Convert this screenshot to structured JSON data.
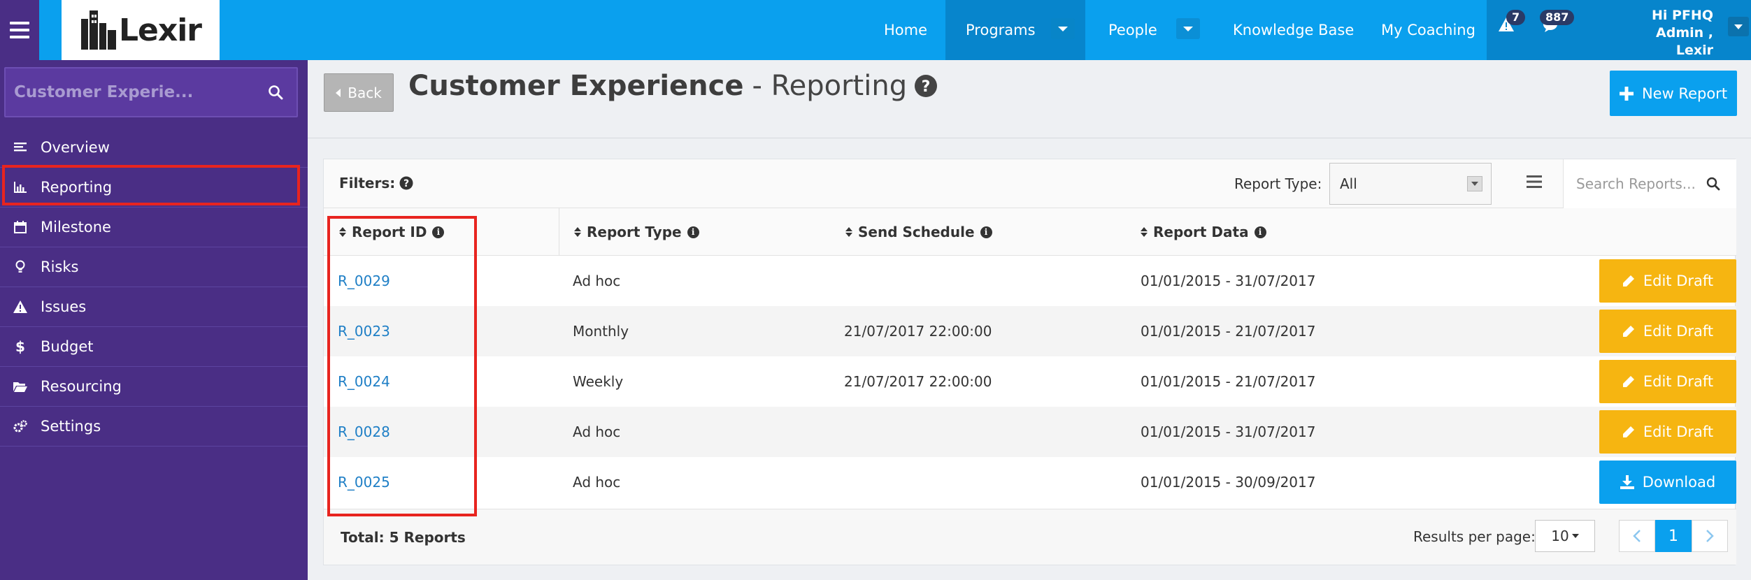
{
  "app": {
    "logo_text": "Lexir"
  },
  "topnav": {
    "home": "Home",
    "programs": "Programs",
    "people": "People",
    "knowledge_base": "Knowledge Base",
    "my_coaching": "My Coaching",
    "alerts_count": "7",
    "messages_count": "887",
    "user_greeting_line1": "Hi PFHQ Admin ,",
    "user_greeting_line2": "Lexir"
  },
  "sidebar": {
    "search_value": "Customer Experie...",
    "items": [
      {
        "label": "Overview",
        "icon": "overview-icon"
      },
      {
        "label": "Reporting",
        "icon": "bar-chart-icon"
      },
      {
        "label": "Milestone",
        "icon": "calendar-icon"
      },
      {
        "label": "Risks",
        "icon": "lightbulb-icon"
      },
      {
        "label": "Issues",
        "icon": "warning-icon"
      },
      {
        "label": "Budget",
        "icon": "dollar-icon"
      },
      {
        "label": "Resourcing",
        "icon": "folder-open-icon"
      },
      {
        "label": "Settings",
        "icon": "cogs-icon"
      }
    ]
  },
  "header": {
    "back_label": "Back",
    "title_strong": "Customer Experience",
    "title_sub": "- Reporting",
    "new_report_label": "New Report"
  },
  "filters": {
    "label": "Filters:",
    "report_type_label": "Report Type:",
    "report_type_value": "All",
    "search_placeholder": "Search Reports..."
  },
  "table": {
    "columns": [
      "Report ID",
      "Report Type",
      "Send Schedule",
      "Report Data"
    ],
    "rows": [
      {
        "id": "R_0029",
        "type": "Ad hoc",
        "schedule": "",
        "data": "01/01/2015 - 31/07/2017",
        "action": "Edit Draft"
      },
      {
        "id": "R_0023",
        "type": "Monthly",
        "schedule": "21/07/2017 22:00:00",
        "data": "01/01/2015 - 21/07/2017",
        "action": "Edit Draft"
      },
      {
        "id": "R_0024",
        "type": "Weekly",
        "schedule": "21/07/2017 22:00:00",
        "data": "01/01/2015 - 21/07/2017",
        "action": "Edit Draft"
      },
      {
        "id": "R_0028",
        "type": "Ad hoc",
        "schedule": "",
        "data": "01/01/2015 - 31/07/2017",
        "action": "Edit Draft"
      },
      {
        "id": "R_0025",
        "type": "Ad hoc",
        "schedule": "",
        "data": "01/01/2015 - 30/09/2017",
        "action": "Download"
      }
    ]
  },
  "footer": {
    "total": "Total: 5 Reports",
    "results_per_page_label": "Results per page:",
    "results_per_page_value": "10",
    "current_page": "1"
  },
  "colors": {
    "topbar": "#0aa0ee",
    "sidebar": "#4a2e85",
    "edit_button": "#f6b511",
    "download_button": "#0aa0ee",
    "link": "#1f7fc6",
    "highlight_box": "#e8241f"
  }
}
